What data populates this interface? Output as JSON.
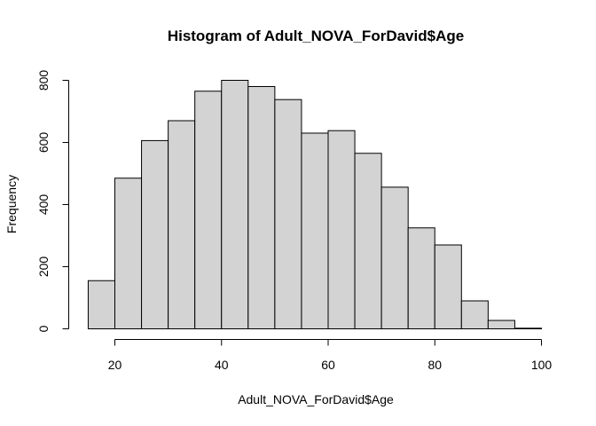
{
  "chart_data": {
    "type": "bar",
    "title": "Histogram of Adult_NOVA_ForDavid$Age",
    "xlabel": "Adult_NOVA_ForDavid$Age",
    "ylabel": "Frequency",
    "bins": [
      {
        "x0": 15,
        "x1": 20,
        "count": 155
      },
      {
        "x0": 20,
        "x1": 25,
        "count": 485
      },
      {
        "x0": 25,
        "x1": 30,
        "count": 606
      },
      {
        "x0": 30,
        "x1": 35,
        "count": 670
      },
      {
        "x0": 35,
        "x1": 40,
        "count": 765
      },
      {
        "x0": 40,
        "x1": 45,
        "count": 800
      },
      {
        "x0": 45,
        "x1": 50,
        "count": 780
      },
      {
        "x0": 50,
        "x1": 55,
        "count": 738
      },
      {
        "x0": 55,
        "x1": 60,
        "count": 630
      },
      {
        "x0": 60,
        "x1": 65,
        "count": 638
      },
      {
        "x0": 65,
        "x1": 70,
        "count": 565
      },
      {
        "x0": 70,
        "x1": 75,
        "count": 456
      },
      {
        "x0": 75,
        "x1": 80,
        "count": 325
      },
      {
        "x0": 80,
        "x1": 85,
        "count": 270
      },
      {
        "x0": 85,
        "x1": 90,
        "count": 90
      },
      {
        "x0": 90,
        "x1": 95,
        "count": 27
      },
      {
        "x0": 95,
        "x1": 100,
        "count": 2
      }
    ],
    "x_ticks": [
      20,
      40,
      60,
      80,
      100
    ],
    "y_ticks": [
      0,
      200,
      400,
      600,
      800
    ],
    "xlim": [
      20,
      100
    ],
    "ylim": [
      0,
      800
    ],
    "grid": false,
    "bar_color": "#d3d3d3",
    "edge_color": "#000000"
  }
}
